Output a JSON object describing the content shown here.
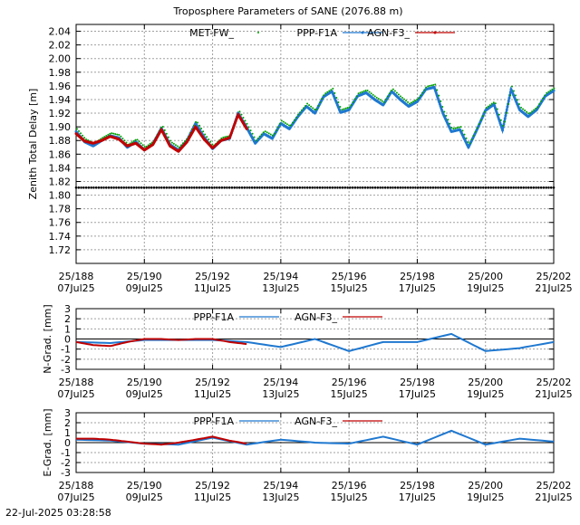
{
  "timestamp": "22-Jul-2025 03:28:58",
  "colors": {
    "met": "#00a000",
    "ppp": "#1f78d0",
    "agn": "#c00000",
    "zero": "#000000"
  },
  "chart_data": [
    {
      "type": "line",
      "title": "Troposphere Parameters of SANE (2076.88 m)",
      "ylabel": "Zenith Total Delay [m]",
      "xlabel": "",
      "xlim": [
        188,
        202
      ],
      "ylim": [
        1.7,
        2.05
      ],
      "x_ticks": [
        {
          "x": 188,
          "top": "25/188",
          "bottom": "07Jul25"
        },
        {
          "x": 190,
          "top": "25/190",
          "bottom": "09Jul25"
        },
        {
          "x": 192,
          "top": "25/192",
          "bottom": "11Jul25"
        },
        {
          "x": 194,
          "top": "25/194",
          "bottom": "13Jul25"
        },
        {
          "x": 196,
          "top": "25/196",
          "bottom": "15Jul25"
        },
        {
          "x": 198,
          "top": "25/198",
          "bottom": "17Jul25"
        },
        {
          "x": 200,
          "top": "25/200",
          "bottom": "19Jul25"
        },
        {
          "x": 202,
          "top": "25/202",
          "bottom": "21Jul25"
        }
      ],
      "y_ticks": [
        "1.72",
        "1.74",
        "1.76",
        "1.78",
        "1.80",
        "1.82",
        "1.84",
        "1.86",
        "1.88",
        "1.90",
        "1.92",
        "1.94",
        "1.96",
        "1.98",
        "2.00",
        "2.02",
        "2.04"
      ],
      "grid": true,
      "legend_position": "top-center",
      "series": [
        {
          "name": "MET-FW_",
          "style": "dots",
          "color": "#00a000",
          "x": [
            188.0,
            188.5,
            189.0,
            189.5,
            190.0,
            190.5,
            191.0,
            191.5,
            192.0,
            192.5,
            193.0,
            193.5,
            194.0,
            194.5,
            195.0,
            195.5,
            196.0,
            196.5,
            197.0,
            197.5,
            198.0,
            198.5,
            199.0,
            199.5,
            200.0,
            200.5,
            201.0,
            201.5,
            202.0
          ],
          "y": [
            1.811,
            1.811,
            1.811,
            1.811,
            1.811,
            1.811,
            1.811,
            1.811,
            1.811,
            1.811,
            1.811,
            1.811,
            1.811,
            1.811,
            1.811,
            1.811,
            1.811,
            1.811,
            1.811,
            1.811,
            1.811,
            1.811,
            1.811,
            1.811,
            1.811,
            1.811,
            1.811,
            1.811,
            1.811
          ]
        },
        {
          "name": "PPP-F1A",
          "style": "line-points",
          "color": "#1f78d0",
          "x": [
            188.0,
            188.25,
            188.5,
            188.75,
            189.0,
            189.25,
            189.5,
            189.75,
            190.0,
            190.25,
            190.5,
            190.75,
            191.0,
            191.25,
            191.5,
            191.75,
            192.0,
            192.25,
            192.5,
            192.75,
            193.0,
            193.25,
            193.5,
            193.75,
            194.0,
            194.25,
            194.5,
            194.75,
            195.0,
            195.25,
            195.5,
            195.75,
            196.0,
            196.25,
            196.5,
            196.75,
            197.0,
            197.25,
            197.5,
            197.75,
            198.0,
            198.25,
            198.5,
            198.75,
            199.0,
            199.25,
            199.5,
            199.75,
            200.0,
            200.25,
            200.5,
            200.75,
            201.0,
            201.25,
            201.5,
            201.75,
            202.0
          ],
          "y": [
            1.893,
            1.878,
            1.872,
            1.88,
            1.887,
            1.884,
            1.87,
            1.878,
            1.866,
            1.875,
            1.898,
            1.874,
            1.866,
            1.88,
            1.905,
            1.885,
            1.868,
            1.88,
            1.883,
            1.92,
            1.899,
            1.876,
            1.89,
            1.883,
            1.905,
            1.897,
            1.915,
            1.93,
            1.92,
            1.944,
            1.952,
            1.921,
            1.925,
            1.945,
            1.95,
            1.94,
            1.932,
            1.952,
            1.94,
            1.93,
            1.937,
            1.955,
            1.958,
            1.92,
            1.893,
            1.896,
            1.87,
            1.896,
            1.924,
            1.933,
            1.895,
            1.955,
            1.925,
            1.915,
            1.925,
            1.945,
            1.953
          ]
        },
        {
          "name": "AGN-F3_",
          "style": "line-points",
          "color": "#c00000",
          "x": [
            188.0,
            188.25,
            188.5,
            188.75,
            189.0,
            189.25,
            189.5,
            189.75,
            190.0,
            190.25,
            190.5,
            190.75,
            191.0,
            191.25,
            191.5,
            191.75,
            192.0,
            192.25,
            192.5,
            192.75,
            193.0
          ],
          "y": [
            1.89,
            1.879,
            1.876,
            1.88,
            1.886,
            1.882,
            1.872,
            1.876,
            1.866,
            1.874,
            1.896,
            1.872,
            1.864,
            1.878,
            1.9,
            1.882,
            1.869,
            1.88,
            1.884,
            1.918,
            1.897
          ]
        }
      ]
    },
    {
      "type": "line",
      "title": "",
      "ylabel": "N-Grad. [mm]",
      "xlim": [
        188,
        202
      ],
      "ylim": [
        -3,
        3
      ],
      "y_ticks": [
        "-3",
        "-2",
        "-1",
        "0",
        "1",
        "2",
        "3"
      ],
      "grid": true,
      "legend_position": "top-center",
      "series": [
        {
          "name": "PPP-F1A",
          "color": "#1f78d0",
          "x": [
            188,
            189,
            190,
            191,
            192,
            193,
            194,
            195,
            196,
            197,
            198,
            199,
            200,
            201,
            202
          ],
          "y": [
            -0.3,
            -0.4,
            -0.1,
            -0.1,
            -0.1,
            -0.3,
            -0.8,
            0.0,
            -1.2,
            -0.3,
            -0.3,
            0.5,
            -1.2,
            -0.9,
            -0.3
          ]
        },
        {
          "name": "AGN-F3_",
          "color": "#c00000",
          "x": [
            188,
            188.5,
            189,
            189.5,
            190,
            190.5,
            191,
            191.5,
            192,
            192.5,
            193
          ],
          "y": [
            -0.3,
            -0.6,
            -0.7,
            -0.3,
            0.0,
            0.0,
            -0.1,
            0.0,
            0.0,
            -0.3,
            -0.5
          ]
        }
      ]
    },
    {
      "type": "line",
      "title": "",
      "ylabel": "E-Grad. [mm]",
      "xlim": [
        188,
        202
      ],
      "ylim": [
        -3,
        3
      ],
      "y_ticks": [
        "-3",
        "-2",
        "-1",
        "0",
        "1",
        "2",
        "3"
      ],
      "grid": true,
      "legend_position": "top-center",
      "series": [
        {
          "name": "PPP-F1A",
          "color": "#1f78d0",
          "x": [
            188,
            189,
            190,
            191,
            192,
            193,
            194,
            195,
            196,
            197,
            198,
            199,
            200,
            201,
            202
          ],
          "y": [
            0.3,
            0.2,
            -0.1,
            -0.2,
            0.5,
            -0.2,
            0.3,
            0.0,
            -0.1,
            0.6,
            -0.2,
            1.2,
            -0.2,
            0.4,
            0.1
          ]
        },
        {
          "name": "AGN-F3_",
          "color": "#c00000",
          "x": [
            188,
            188.5,
            189,
            189.5,
            190,
            190.5,
            191,
            191.5,
            192,
            192.5,
            193
          ],
          "y": [
            0.4,
            0.4,
            0.3,
            0.1,
            -0.1,
            -0.2,
            0.0,
            0.3,
            0.6,
            0.2,
            -0.1
          ]
        }
      ]
    }
  ]
}
